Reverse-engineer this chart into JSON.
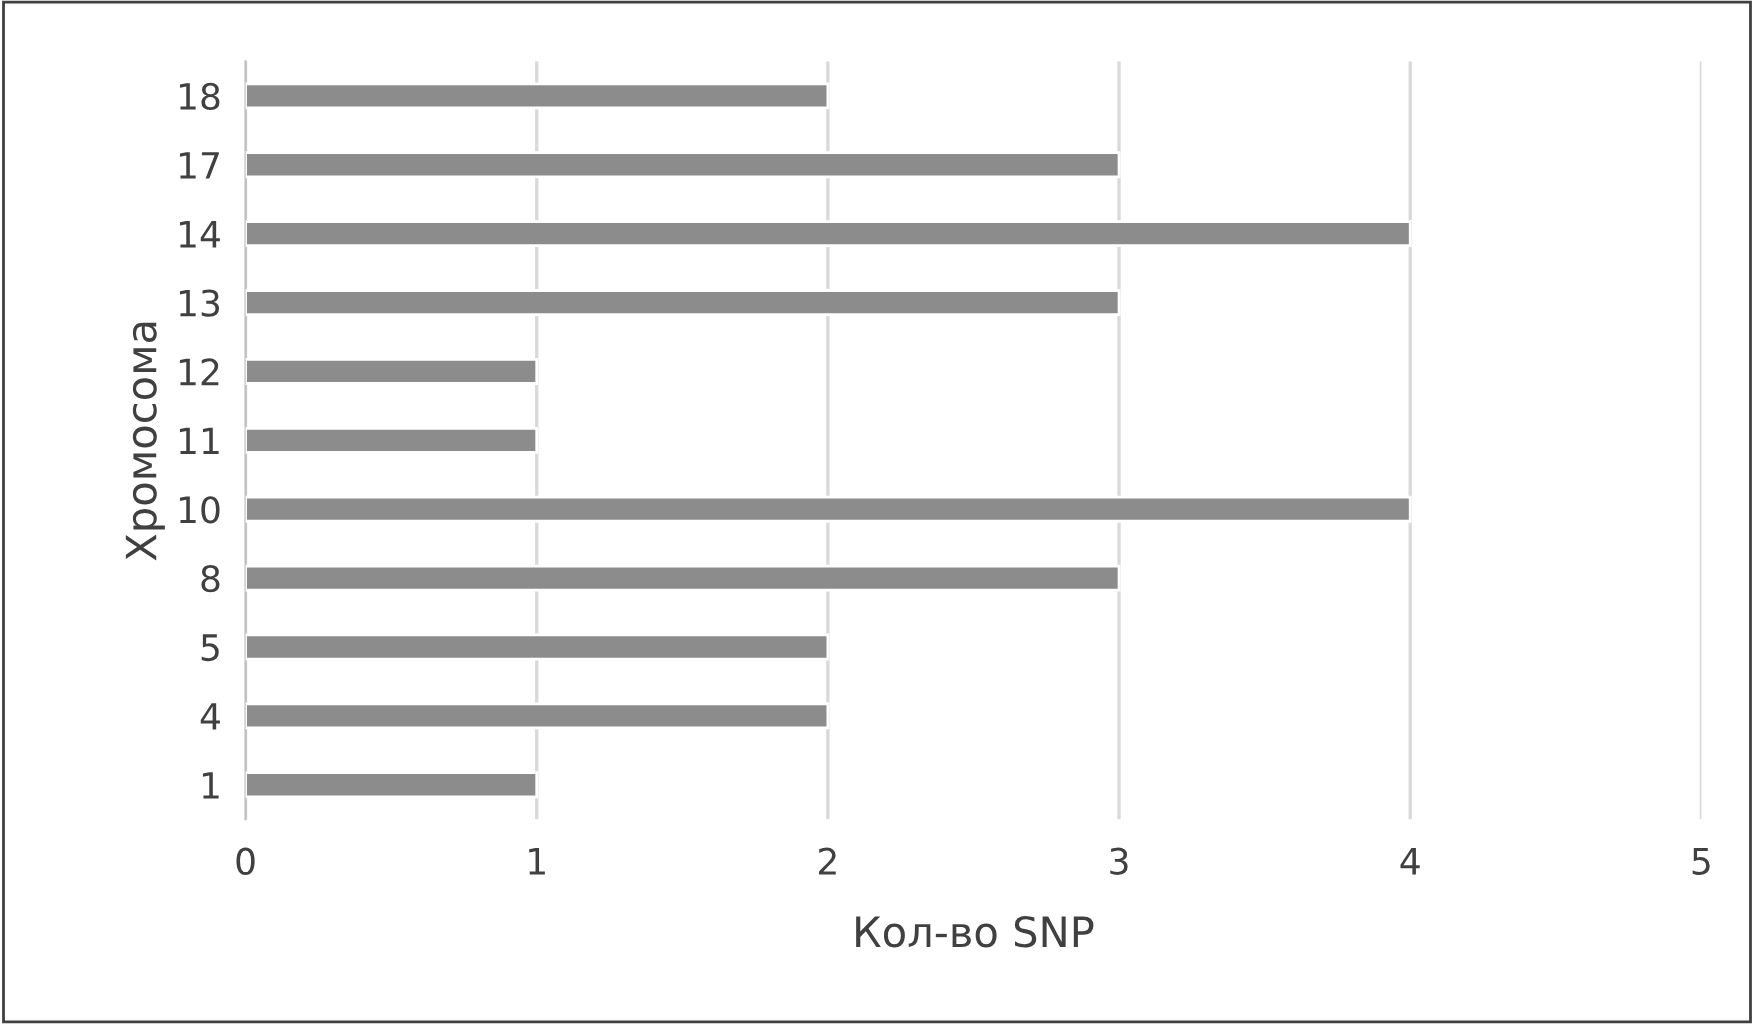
{
  "chart_data": {
    "type": "bar",
    "orientation": "horizontal",
    "xlabel": "Кол-во SNP",
    "ylabel": "Хромосома",
    "categories": [
      "18",
      "17",
      "14",
      "13",
      "12",
      "11",
      "10",
      "8",
      "5",
      "4",
      "1"
    ],
    "values": [
      2,
      3,
      4,
      3,
      1,
      1,
      4,
      3,
      2,
      2,
      1
    ],
    "color": "#8c8c8c",
    "xlim": [
      0,
      5
    ],
    "xticks": [
      0,
      1,
      2,
      3,
      4,
      5
    ],
    "grid": "x",
    "legend": false
  }
}
